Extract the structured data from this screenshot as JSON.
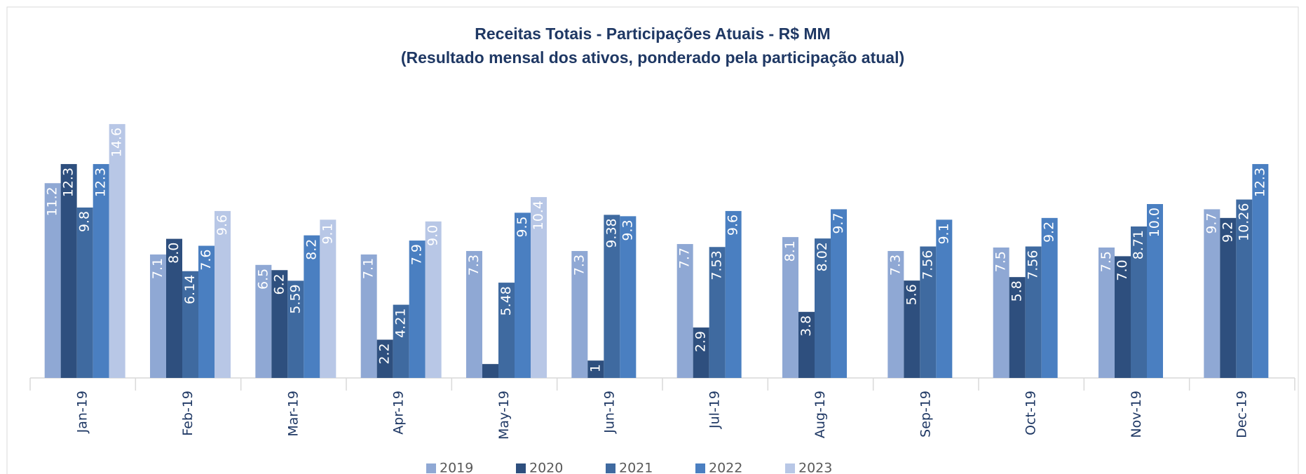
{
  "chart_data": {
    "type": "bar",
    "title": "Receitas Totais - Participações Atuais - R$ MM",
    "subtitle": "(Resultado mensal dos ativos, ponderado pela participação atual)",
    "categories": [
      "Jan-19",
      "Feb-19",
      "Mar-19",
      "Apr-19",
      "May-19",
      "Jun-19",
      "Jul-19",
      "Aug-19",
      "Sep-19",
      "Oct-19",
      "Nov-19",
      "Dec-19"
    ],
    "series": [
      {
        "name": "2019",
        "color": "#8fa8d4",
        "values": [
          11.2,
          7.1,
          6.5,
          7.1,
          7.3,
          7.3,
          7.7,
          8.1,
          7.3,
          7.5,
          7.5,
          9.7
        ],
        "value_labels": [
          "11.2",
          "7.1",
          "6.5",
          "7.1",
          "7.3",
          "7.3",
          "7.7",
          "8.1",
          "7.3",
          "7.5",
          "7.5",
          "9.7"
        ]
      },
      {
        "name": "2020",
        "color": "#2e4f7e",
        "values": [
          12.3,
          8,
          6.2,
          2.2,
          0.8,
          1,
          2.9,
          3.8,
          5.6,
          5.8,
          7,
          9.2
        ],
        "value_labels": [
          "12.3",
          "8.0",
          "6.2",
          "2.2",
          null,
          "1",
          "2.9",
          "3.8",
          "5.6",
          "5.8",
          "7.0",
          "9.2"
        ]
      },
      {
        "name": "2021",
        "color": "#3f6aa0",
        "values": [
          9.8,
          6.14,
          5.59,
          4.21,
          5.48,
          9.38,
          7.53,
          8.02,
          7.56,
          7.56,
          8.71,
          10.26
        ],
        "value_labels": [
          "9.8",
          "6.14",
          "5.59",
          "4.21",
          "5.48",
          "9.38",
          "7.53",
          "8.02",
          "7.56",
          "7.56",
          "8.71",
          "10.26"
        ]
      },
      {
        "name": "2022",
        "color": "#4a7fc1",
        "values": [
          12.3,
          7.6,
          8.2,
          7.9,
          9.5,
          9.3,
          9.6,
          9.7,
          9.1,
          9.2,
          10,
          12.3
        ],
        "value_labels": [
          "12.3",
          "7.6",
          "8.2",
          "7.9",
          "9.5",
          "9.3",
          "9.6",
          "9.7",
          "9.1",
          "9.2",
          "10.0",
          "12.3"
        ]
      },
      {
        "name": "2023",
        "color": "#b8c7e6",
        "values": [
          14.6,
          9.6,
          9.1,
          9,
          10.4,
          null,
          null,
          null,
          null,
          null,
          null,
          null
        ],
        "value_labels": [
          "14.6",
          "9.6",
          "9.1",
          "9.0",
          "10.4",
          null,
          null,
          null,
          null,
          null,
          null,
          null
        ]
      }
    ],
    "ylim": [
      0,
      15
    ]
  }
}
